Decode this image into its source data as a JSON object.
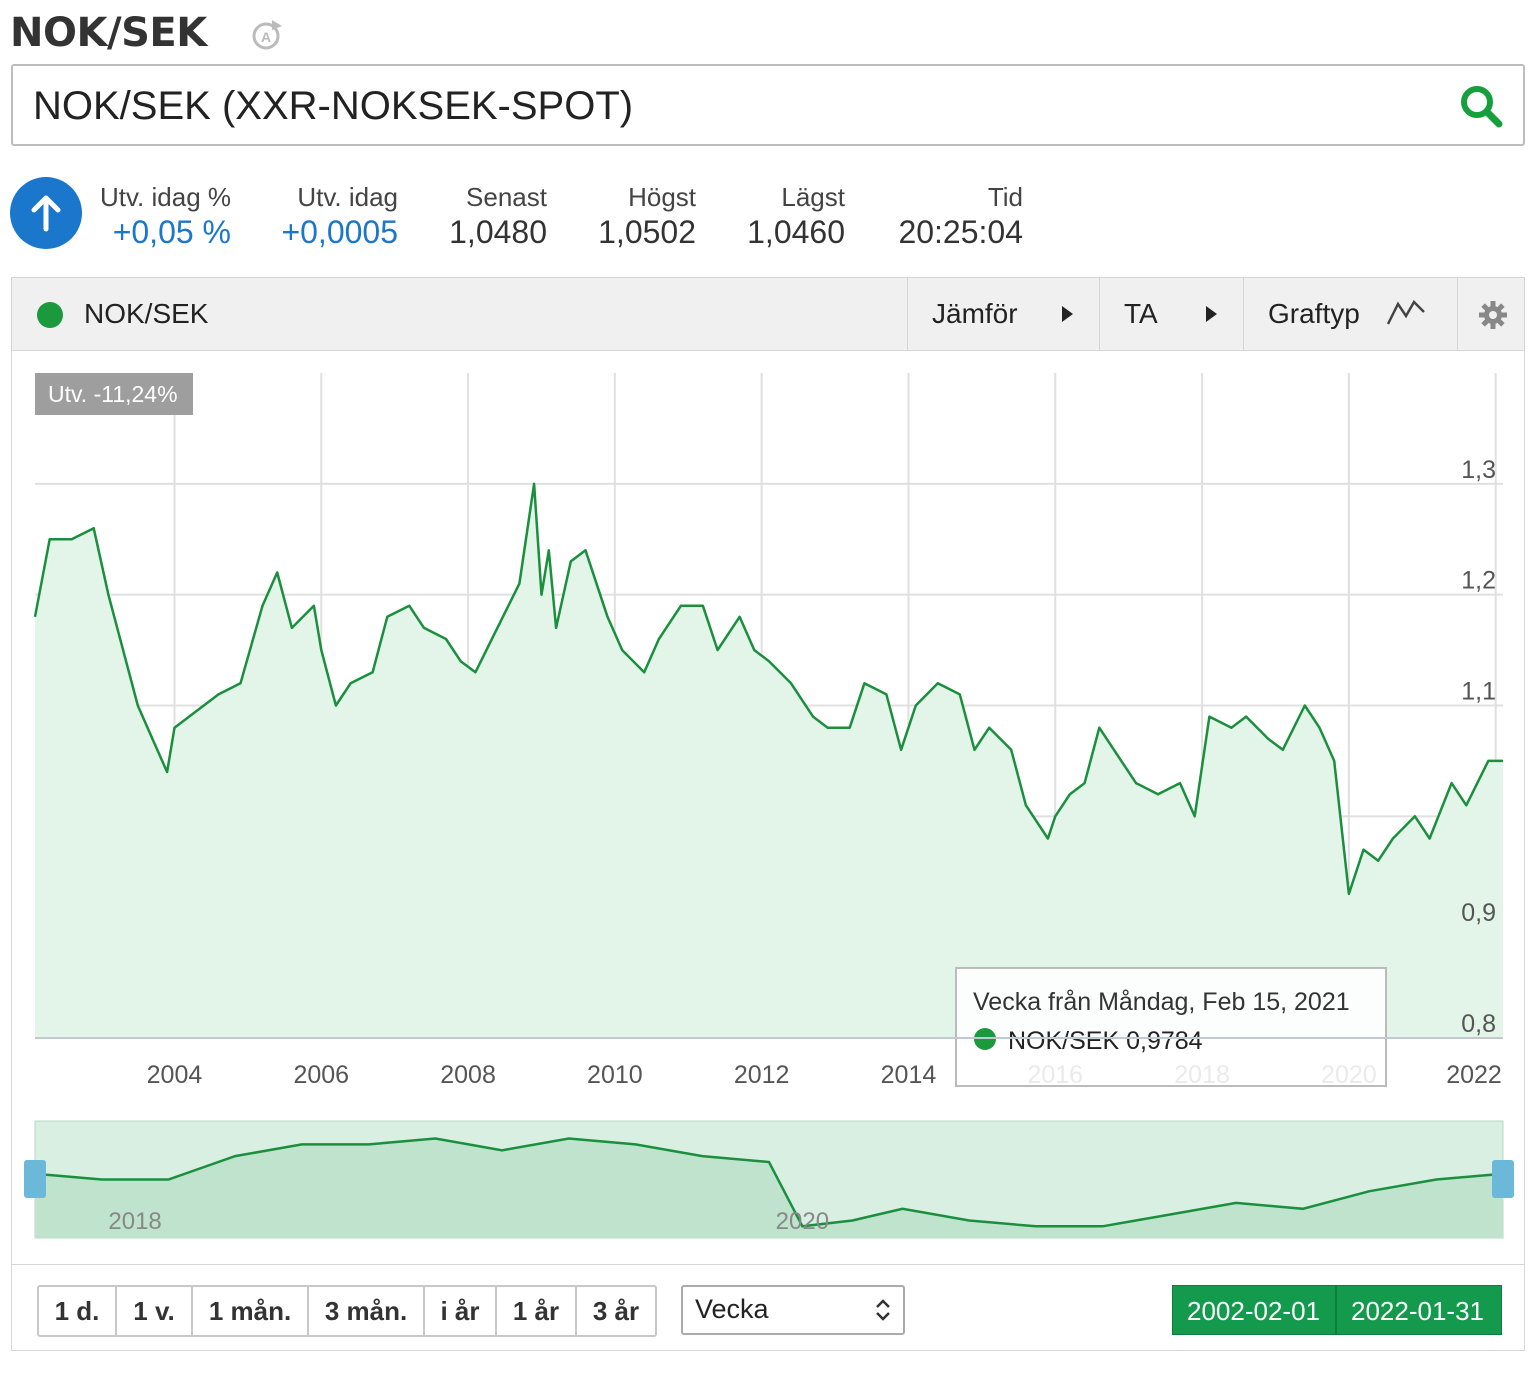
{
  "header": {
    "title": "NOK/SEK",
    "refresh_icon": "auto-refresh-icon"
  },
  "search": {
    "value": "NOK/SEK (XXR-NOKSEK-SPOT)",
    "icon": "search-icon",
    "icon_color": "#16a03d"
  },
  "quote": {
    "direction_icon": "arrow-up-icon",
    "change_pct_label": "Utv. idag %",
    "change_pct_value": "+0,05 %",
    "change_label": "Utv. idag",
    "change_value": "+0,0005",
    "last_label": "Senast",
    "last_value": "1,0480",
    "high_label": "Högst",
    "high_value": "1,0502",
    "low_label": "Lägst",
    "low_value": "1,0460",
    "time_label": "Tid",
    "time_value": "20:25:04"
  },
  "toolbar": {
    "series_name": "NOK/SEK",
    "compare_label": "Jämför",
    "ta_label": "TA",
    "charttype_label": "Graftyp",
    "settings_icon": "gear-icon"
  },
  "chart_data": {
    "type": "area",
    "badge": "Utv. -11,24%",
    "x_ticks": [
      "2004",
      "2006",
      "2008",
      "2010",
      "2012",
      "2014",
      "2016",
      "2018",
      "2020",
      "2022"
    ],
    "y_ticks": [
      "1,3",
      "1,2",
      "1,1",
      "0,9",
      "0,8"
    ],
    "ylim": [
      0.8,
      1.4
    ],
    "xlim": [
      2002.1,
      2022.1
    ],
    "grid": true,
    "series": [
      {
        "name": "NOK/SEK",
        "color": "#1a8f3e",
        "fill": "#e3f4e8",
        "x": [
          2002.1,
          2002.3,
          2002.6,
          2002.9,
          2003.1,
          2003.3,
          2003.5,
          2003.7,
          2003.9,
          2004.0,
          2004.2,
          2004.4,
          2004.6,
          2004.9,
          2005.2,
          2005.4,
          2005.6,
          2005.9,
          2006.0,
          2006.2,
          2006.4,
          2006.7,
          2006.9,
          2007.2,
          2007.4,
          2007.7,
          2007.9,
          2008.1,
          2008.4,
          2008.7,
          2008.9,
          2009.0,
          2009.1,
          2009.2,
          2009.4,
          2009.6,
          2009.9,
          2010.1,
          2010.4,
          2010.6,
          2010.9,
          2011.2,
          2011.4,
          2011.7,
          2011.9,
          2012.1,
          2012.4,
          2012.7,
          2012.9,
          2013.2,
          2013.4,
          2013.7,
          2013.9,
          2014.1,
          2014.4,
          2014.7,
          2014.9,
          2015.1,
          2015.4,
          2015.6,
          2015.9,
          2016.0,
          2016.2,
          2016.4,
          2016.6,
          2016.9,
          2017.1,
          2017.4,
          2017.7,
          2017.9,
          2018.1,
          2018.4,
          2018.6,
          2018.9,
          2019.1,
          2019.4,
          2019.6,
          2019.8,
          2020.0,
          2020.2,
          2020.4,
          2020.6,
          2020.9,
          2021.1,
          2021.4,
          2021.6,
          2021.9,
          2022.1
        ],
        "y": [
          1.18,
          1.25,
          1.25,
          1.26,
          1.2,
          1.15,
          1.1,
          1.07,
          1.04,
          1.08,
          1.09,
          1.1,
          1.11,
          1.12,
          1.19,
          1.22,
          1.17,
          1.19,
          1.15,
          1.1,
          1.12,
          1.13,
          1.18,
          1.19,
          1.17,
          1.16,
          1.14,
          1.13,
          1.17,
          1.21,
          1.3,
          1.2,
          1.24,
          1.17,
          1.23,
          1.24,
          1.18,
          1.15,
          1.13,
          1.16,
          1.19,
          1.19,
          1.15,
          1.18,
          1.15,
          1.14,
          1.12,
          1.09,
          1.08,
          1.08,
          1.12,
          1.11,
          1.06,
          1.1,
          1.12,
          1.11,
          1.06,
          1.08,
          1.06,
          1.01,
          0.98,
          1.0,
          1.02,
          1.03,
          1.08,
          1.05,
          1.03,
          1.02,
          1.03,
          1.0,
          1.09,
          1.08,
          1.09,
          1.07,
          1.06,
          1.1,
          1.08,
          1.05,
          0.93,
          0.97,
          0.96,
          0.98,
          1.0,
          0.98,
          1.03,
          1.01,
          1.05,
          1.05
        ]
      }
    ],
    "tooltip": {
      "title": "Vecka från Måndag, Feb 15, 2021",
      "series": "NOK/SEK",
      "value": "0,9784"
    },
    "navigator": {
      "x_ticks": [
        "2018",
        "2020"
      ],
      "xlim": [
        2017.7,
        2022.1
      ],
      "x": [
        2017.7,
        2017.9,
        2018.1,
        2018.3,
        2018.5,
        2018.7,
        2018.9,
        2019.1,
        2019.3,
        2019.5,
        2019.7,
        2019.9,
        2020.0,
        2020.15,
        2020.3,
        2020.5,
        2020.7,
        2020.9,
        2021.1,
        2021.3,
        2021.5,
        2021.7,
        2021.9,
        2022.1
      ],
      "y": [
        1.03,
        1.02,
        1.02,
        1.06,
        1.08,
        1.08,
        1.09,
        1.07,
        1.09,
        1.08,
        1.06,
        1.05,
        0.94,
        0.95,
        0.97,
        0.95,
        0.94,
        0.94,
        0.96,
        0.98,
        0.97,
        1.0,
        1.02,
        1.03
      ],
      "ylim": [
        0.92,
        1.12
      ]
    }
  },
  "range": {
    "buttons": [
      "1 d.",
      "1 v.",
      "1 mån.",
      "3 mån.",
      "i år",
      "1 år",
      "3 år"
    ],
    "interval": "Vecka",
    "from_date": "2002-02-01",
    "to_date": "2022-01-31",
    "accent": "#139a4d"
  }
}
